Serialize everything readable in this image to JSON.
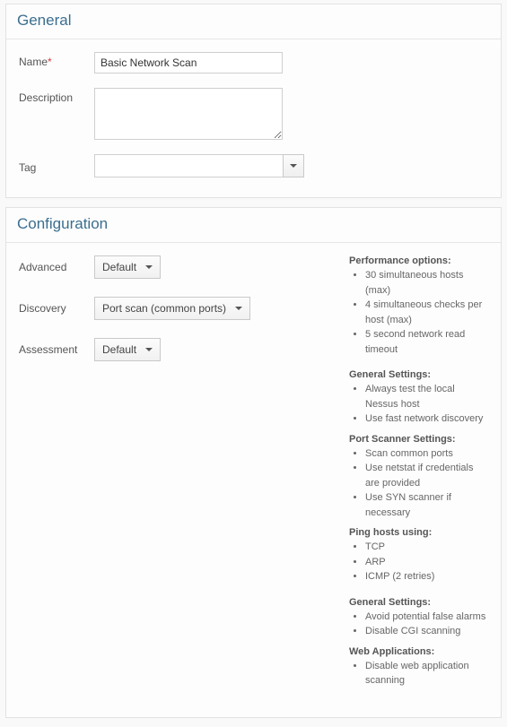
{
  "general": {
    "title": "General",
    "name_label": "Name",
    "name_value": "Basic Network Scan",
    "description_label": "Description",
    "description_value": "",
    "tag_label": "Tag",
    "tag_value": ""
  },
  "configuration": {
    "title": "Configuration",
    "advanced_label": "Advanced",
    "advanced_value": "Default",
    "discovery_label": "Discovery",
    "discovery_value": "Port scan (common ports)",
    "assessment_label": "Assessment",
    "assessment_value": "Default"
  },
  "info": {
    "performance": {
      "heading": "Performance options:",
      "items": [
        "30 simultaneous hosts (max)",
        "4 simultaneous checks per host (max)",
        "5 second network read timeout"
      ]
    },
    "discovery_general": {
      "heading": "General Settings:",
      "items": [
        "Always test the local Nessus host",
        "Use fast network discovery"
      ]
    },
    "port_scanner": {
      "heading": "Port Scanner Settings:",
      "items": [
        "Scan common ports",
        "Use netstat if credentials are provided",
        "Use SYN scanner if necessary"
      ]
    },
    "ping": {
      "heading": "Ping hosts using:",
      "items": [
        "TCP",
        "ARP",
        "ICMP (2 retries)"
      ]
    },
    "assessment_general": {
      "heading": "General Settings:",
      "items": [
        "Avoid potential false alarms",
        "Disable CGI scanning"
      ]
    },
    "web_apps": {
      "heading": "Web Applications:",
      "items": [
        "Disable web application scanning"
      ]
    }
  }
}
